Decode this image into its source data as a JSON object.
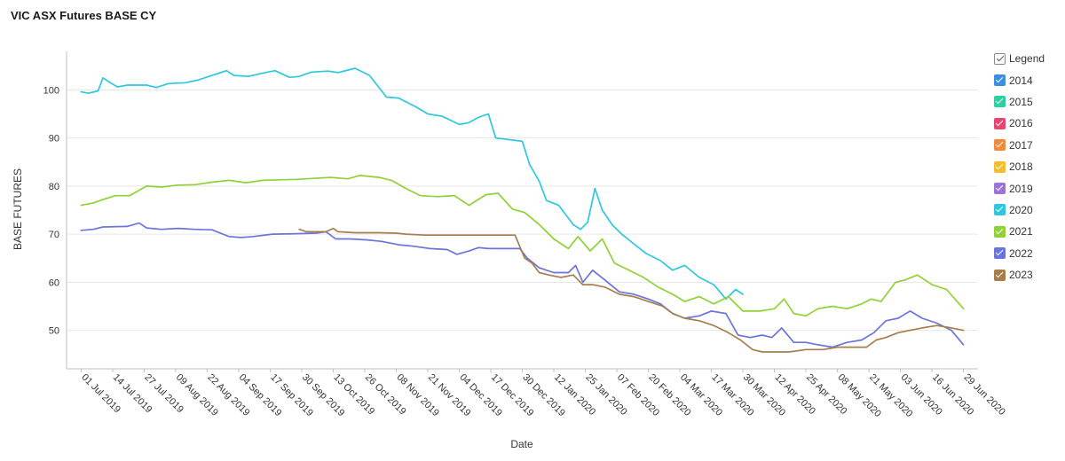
{
  "chart_data": {
    "type": "line",
    "title": "VIC ASX Futures BASE CY",
    "xlabel": "Date",
    "ylabel": "BASE FUTURES",
    "ylim": [
      42,
      108
    ],
    "yticks": [
      50,
      60,
      70,
      80,
      90,
      100
    ],
    "xlim": [
      "2019-06-25",
      "2020-07-05"
    ],
    "xticks": [
      "2019-07-01",
      "2019-07-14",
      "2019-07-27",
      "2019-08-09",
      "2019-08-22",
      "2019-09-04",
      "2019-09-17",
      "2019-09-30",
      "2019-10-13",
      "2019-10-26",
      "2019-11-08",
      "2019-11-21",
      "2019-12-04",
      "2019-12-17",
      "2019-12-30",
      "2020-01-12",
      "2020-01-25",
      "2020-02-07",
      "2020-02-20",
      "2020-03-04",
      "2020-03-17",
      "2020-03-30",
      "2020-04-12",
      "2020-04-25",
      "2020-05-08",
      "2020-05-21",
      "2020-06-03",
      "2020-06-16",
      "2020-06-29"
    ],
    "xtick_labels": [
      "01 Jul 2019",
      "14 Jul 2019",
      "27 Jul 2019",
      "09 Aug 2019",
      "22 Aug 2019",
      "04 Sep 2019",
      "17 Sep 2019",
      "30 Sep 2019",
      "13 Oct 2019",
      "26 Oct 2019",
      "08 Nov 2019",
      "21 Nov 2019",
      "04 Dec 2019",
      "17 Dec 2019",
      "30 Dec 2019",
      "12 Jan 2020",
      "25 Jan 2020",
      "07 Feb 2020",
      "20 Feb 2020",
      "04 Mar 2020",
      "17 Mar 2020",
      "30 Mar 2020",
      "12 Apr 2020",
      "25 Apr 2020",
      "08 May 2020",
      "21 May 2020",
      "03 Jun 2020",
      "16 Jun 2020",
      "29 Jun 2020"
    ],
    "legend": {
      "title": "Legend",
      "placement": "right"
    },
    "grid": true,
    "series": [
      {
        "name": "2014",
        "color": "#3a8ee6",
        "x": [],
        "y": []
      },
      {
        "name": "2015",
        "color": "#2fcfa3",
        "x": [],
        "y": []
      },
      {
        "name": "2016",
        "color": "#e8466e",
        "x": [],
        "y": []
      },
      {
        "name": "2017",
        "color": "#f48a3a",
        "x": [],
        "y": []
      },
      {
        "name": "2018",
        "color": "#f6bd2e",
        "x": [],
        "y": []
      },
      {
        "name": "2019",
        "color": "#9b74d6",
        "x": [],
        "y": []
      },
      {
        "name": "2020",
        "color": "#2ec7df",
        "x": [
          "2019-07-01",
          "2019-07-04",
          "2019-07-08",
          "2019-07-10",
          "2019-07-13",
          "2019-07-16",
          "2019-07-20",
          "2019-07-28",
          "2019-08-01",
          "2019-08-06",
          "2019-08-13",
          "2019-08-18",
          "2019-08-24",
          "2019-08-30",
          "2019-09-02",
          "2019-09-08",
          "2019-09-14",
          "2019-09-19",
          "2019-09-25",
          "2019-09-29",
          "2019-10-04",
          "2019-10-11",
          "2019-10-15",
          "2019-10-22",
          "2019-10-28",
          "2019-11-04",
          "2019-11-09",
          "2019-11-16",
          "2019-11-21",
          "2019-11-27",
          "2019-12-04",
          "2019-12-08",
          "2019-12-12",
          "2019-12-16",
          "2019-12-19",
          "2019-12-24",
          "2019-12-30",
          "2020-01-02",
          "2020-01-06",
          "2020-01-09",
          "2020-01-14",
          "2020-01-20",
          "2020-01-23",
          "2020-01-26",
          "2020-01-29",
          "2020-02-01",
          "2020-02-05",
          "2020-02-09",
          "2020-02-14",
          "2020-02-19",
          "2020-02-25",
          "2020-03-01",
          "2020-03-06",
          "2020-03-12",
          "2020-03-18",
          "2020-03-23",
          "2020-03-27",
          "2020-03-30"
        ],
        "y": [
          99.6,
          99.3,
          99.8,
          102.5,
          101.5,
          100.6,
          101.0,
          101.0,
          100.5,
          101.3,
          101.5,
          102.0,
          103.0,
          104.0,
          103.0,
          102.8,
          103.5,
          104.0,
          102.6,
          102.8,
          103.7,
          103.9,
          103.6,
          104.5,
          103.0,
          98.5,
          98.3,
          96.5,
          95.0,
          94.5,
          92.8,
          93.2,
          94.3,
          95.0,
          90.0,
          89.7,
          89.3,
          84.5,
          81.0,
          77.0,
          76.0,
          72.0,
          71.0,
          72.5,
          79.5,
          75.0,
          72.0,
          70.0,
          68.0,
          66.0,
          64.5,
          62.5,
          63.5,
          61.0,
          59.5,
          56.5,
          58.5,
          57.5
        ]
      },
      {
        "name": "2021",
        "color": "#8fd136",
        "x": [
          "2019-07-01",
          "2019-07-06",
          "2019-07-10",
          "2019-07-15",
          "2019-07-21",
          "2019-07-28",
          "2019-08-03",
          "2019-08-10",
          "2019-08-17",
          "2019-08-24",
          "2019-08-31",
          "2019-09-07",
          "2019-09-14",
          "2019-09-21",
          "2019-09-28",
          "2019-10-05",
          "2019-10-12",
          "2019-10-19",
          "2019-10-24",
          "2019-11-01",
          "2019-11-06",
          "2019-11-12",
          "2019-11-18",
          "2019-11-25",
          "2019-12-02",
          "2019-12-08",
          "2019-12-15",
          "2019-12-20",
          "2019-12-26",
          "2019-12-31",
          "2020-01-06",
          "2020-01-12",
          "2020-01-18",
          "2020-01-22",
          "2020-01-27",
          "2020-02-01",
          "2020-02-06",
          "2020-02-12",
          "2020-02-18",
          "2020-02-24",
          "2020-03-01",
          "2020-03-06",
          "2020-03-12",
          "2020-03-18",
          "2020-03-24",
          "2020-03-30",
          "2020-04-06",
          "2020-04-12",
          "2020-04-16",
          "2020-04-20",
          "2020-04-25",
          "2020-04-30",
          "2020-05-06",
          "2020-05-12",
          "2020-05-18",
          "2020-05-22",
          "2020-05-26",
          "2020-06-01",
          "2020-06-05",
          "2020-06-10",
          "2020-06-16",
          "2020-06-22",
          "2020-06-29"
        ],
        "y": [
          76.0,
          76.5,
          77.2,
          78.0,
          78.0,
          80.0,
          79.8,
          80.2,
          80.3,
          80.8,
          81.2,
          80.7,
          81.2,
          81.3,
          81.4,
          81.6,
          81.8,
          81.5,
          82.2,
          81.8,
          81.2,
          79.5,
          78.0,
          77.8,
          78.0,
          76.0,
          78.2,
          78.5,
          75.2,
          74.5,
          72.0,
          69.0,
          67.0,
          69.5,
          66.5,
          69.0,
          64.0,
          62.5,
          61.0,
          59.0,
          57.5,
          56.0,
          57.0,
          55.5,
          57.0,
          54.0,
          54.0,
          54.5,
          56.5,
          53.5,
          53.0,
          54.5,
          55.0,
          54.5,
          55.5,
          56.5,
          56.0,
          60.0,
          60.5,
          61.5,
          59.5,
          58.5,
          54.5
        ]
      },
      {
        "name": "2022",
        "color": "#6a74dd",
        "x": [
          "2019-07-01",
          "2019-07-06",
          "2019-07-10",
          "2019-07-20",
          "2019-07-25",
          "2019-07-28",
          "2019-08-03",
          "2019-08-10",
          "2019-08-17",
          "2019-08-24",
          "2019-08-31",
          "2019-09-05",
          "2019-09-10",
          "2019-09-18",
          "2019-09-28",
          "2019-10-06",
          "2019-10-10",
          "2019-10-14",
          "2019-10-20",
          "2019-10-27",
          "2019-11-02",
          "2019-11-09",
          "2019-11-15",
          "2019-11-22",
          "2019-11-29",
          "2019-12-03",
          "2019-12-08",
          "2019-12-12",
          "2019-12-16",
          "2019-12-22",
          "2019-12-29",
          "2020-01-01",
          "2020-01-06",
          "2020-01-12",
          "2020-01-18",
          "2020-01-21",
          "2020-01-24",
          "2020-01-28",
          "2020-02-02",
          "2020-02-08",
          "2020-02-14",
          "2020-02-20",
          "2020-02-25",
          "2020-03-01",
          "2020-03-06",
          "2020-03-12",
          "2020-03-17",
          "2020-03-23",
          "2020-03-28",
          "2020-04-02",
          "2020-04-07",
          "2020-04-11",
          "2020-04-15",
          "2020-04-20",
          "2020-04-25",
          "2020-04-30",
          "2020-05-06",
          "2020-05-12",
          "2020-05-18",
          "2020-05-23",
          "2020-05-28",
          "2020-06-02",
          "2020-06-07",
          "2020-06-12",
          "2020-06-18",
          "2020-06-24",
          "2020-06-29"
        ],
        "y": [
          70.8,
          71.0,
          71.5,
          71.6,
          72.3,
          71.3,
          71.0,
          71.2,
          71.0,
          70.9,
          69.5,
          69.3,
          69.5,
          70.0,
          70.1,
          70.2,
          70.5,
          69.0,
          69.0,
          68.8,
          68.5,
          67.8,
          67.5,
          67.0,
          66.8,
          65.8,
          66.5,
          67.2,
          67.0,
          67.0,
          67.0,
          65.0,
          63.0,
          62.0,
          62.0,
          63.5,
          60.0,
          62.5,
          60.5,
          58.0,
          57.5,
          56.5,
          55.5,
          53.5,
          52.5,
          53.0,
          54.0,
          53.5,
          49.0,
          48.5,
          49.0,
          48.5,
          50.5,
          47.5,
          47.5,
          47.0,
          46.5,
          47.5,
          48.0,
          49.5,
          52.0,
          52.5,
          54.0,
          52.5,
          51.5,
          50.0,
          47.0
        ]
      },
      {
        "name": "2023",
        "color": "#a87d4c",
        "x": [
          "2019-09-29",
          "2019-10-02",
          "2019-10-10",
          "2019-10-13",
          "2019-10-15",
          "2019-10-22",
          "2019-11-01",
          "2019-11-08",
          "2019-11-12",
          "2019-11-20",
          "2019-12-01",
          "2019-12-10",
          "2019-12-20",
          "2019-12-27",
          "2019-12-31",
          "2020-01-03",
          "2020-01-06",
          "2020-01-10",
          "2020-01-15",
          "2020-01-20",
          "2020-01-24",
          "2020-01-28",
          "2020-02-02",
          "2020-02-08",
          "2020-02-14",
          "2020-02-20",
          "2020-02-26",
          "2020-03-01",
          "2020-03-06",
          "2020-03-12",
          "2020-03-18",
          "2020-03-24",
          "2020-03-29",
          "2020-04-03",
          "2020-04-07",
          "2020-04-12",
          "2020-04-18",
          "2020-04-25",
          "2020-05-02",
          "2020-05-08",
          "2020-05-14",
          "2020-05-20",
          "2020-05-24",
          "2020-05-28",
          "2020-06-02",
          "2020-06-07",
          "2020-06-12",
          "2020-06-18",
          "2020-06-24",
          "2020-06-29"
        ],
        "y": [
          71.0,
          70.5,
          70.5,
          71.2,
          70.5,
          70.3,
          70.3,
          70.2,
          70.0,
          69.8,
          69.8,
          69.8,
          69.8,
          69.8,
          65.0,
          64.0,
          62.0,
          61.5,
          61.0,
          61.5,
          59.5,
          59.5,
          59.0,
          57.5,
          57.0,
          56.0,
          55.0,
          53.5,
          52.5,
          52.0,
          51.0,
          49.5,
          48.0,
          46.0,
          45.5,
          45.5,
          45.5,
          46.0,
          46.0,
          46.5,
          46.5,
          46.5,
          48.0,
          48.5,
          49.5,
          50.0,
          50.5,
          51.0,
          50.5,
          50.0
        ]
      }
    ]
  }
}
